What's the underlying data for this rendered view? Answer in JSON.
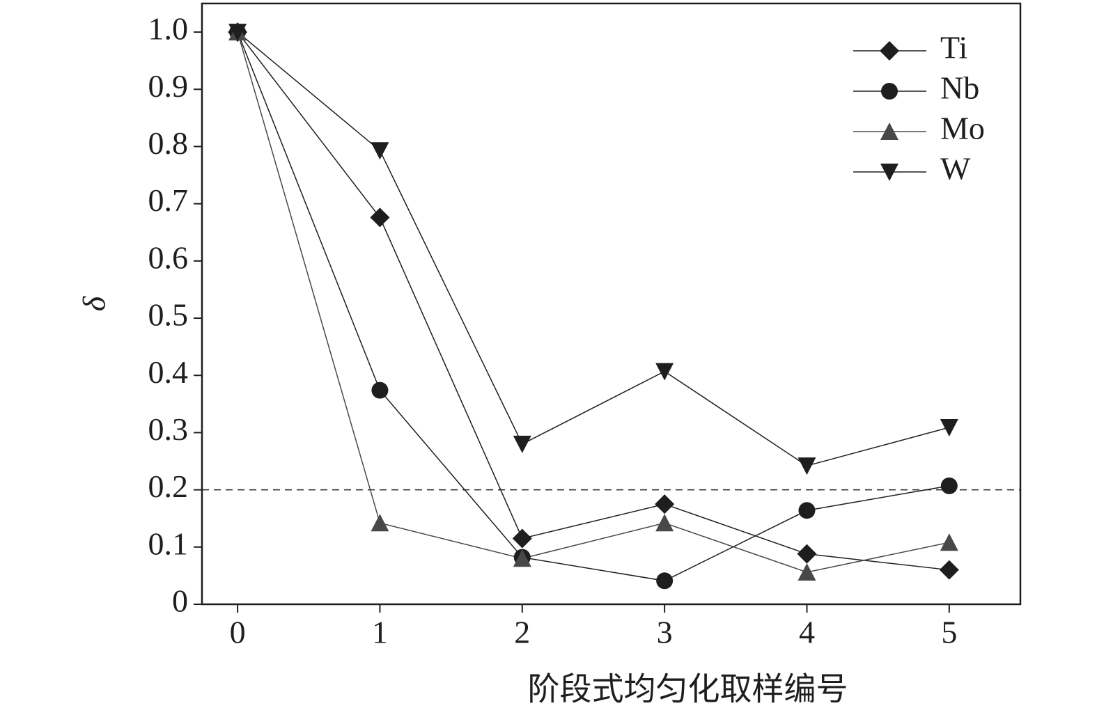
{
  "chart_data": {
    "type": "line",
    "xlabel": "阶段式均匀化取样编号",
    "ylabel": "δ",
    "x": [
      0,
      1,
      2,
      3,
      4,
      5
    ],
    "series": [
      {
        "name": "Ti",
        "color": "#1e1e1e",
        "marker": "diamond",
        "values": [
          1.0,
          0.676,
          0.115,
          0.175,
          0.088,
          0.06
        ]
      },
      {
        "name": "Nb",
        "color": "#1e1e1e",
        "marker": "circle",
        "values": [
          1.0,
          0.374,
          0.082,
          0.041,
          0.164,
          0.207
        ]
      },
      {
        "name": "Mo",
        "color": "#484848",
        "marker": "triangle-up",
        "values": [
          1.0,
          0.142,
          0.08,
          0.142,
          0.056,
          0.108
        ]
      },
      {
        "name": "W",
        "color": "#1e1e1e",
        "marker": "triangle-down",
        "values": [
          1.0,
          0.793,
          0.28,
          0.407,
          0.242,
          0.309
        ]
      }
    ],
    "reference_line": 0.2,
    "xlim": [
      -0.25,
      5.5
    ],
    "ylim": [
      0,
      1.05
    ],
    "xticks": [
      0,
      1,
      2,
      3,
      4,
      5
    ],
    "yticks": [
      0,
      0.1,
      0.2,
      0.3,
      0.4,
      0.5,
      0.6,
      0.7,
      0.8,
      0.9,
      {
        "value": 1,
        "label": "1.0"
      }
    ],
    "legend": "upper-right"
  }
}
